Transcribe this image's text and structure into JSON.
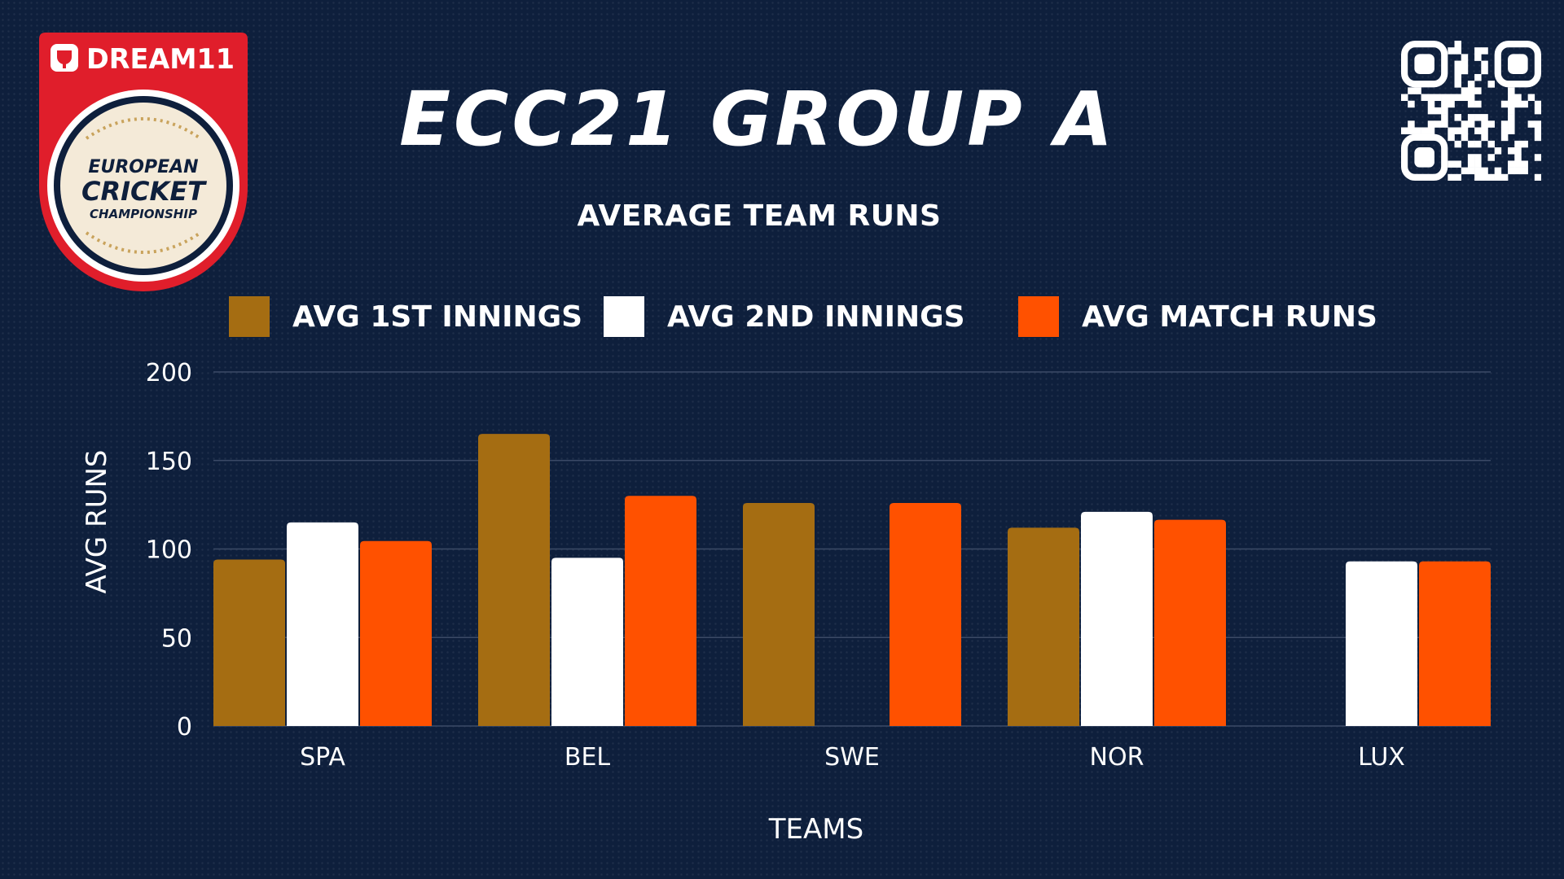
{
  "logo": {
    "brand": "DREAM11",
    "line1": "EUROPEAN",
    "line2": "CRICKET",
    "line3": "CHAMPIONSHIP"
  },
  "qr_icon": "qr-code-icon",
  "colors": {
    "background": "#0e1f3c",
    "first_innings": "#a56d12",
    "second_innings": "#ffffff",
    "match_runs": "#ff5100",
    "logo_red": "#e01e2b",
    "gridline": "#3b4a66"
  },
  "chart_data": {
    "type": "bar",
    "title": "ECC21 GROUP A",
    "subtitle": "AVERAGE TEAM RUNS",
    "xlabel": "TEAMS",
    "ylabel": "AVG RUNS",
    "ylim": [
      0,
      200
    ],
    "yticks": [
      0,
      50,
      100,
      150,
      200
    ],
    "grid": true,
    "legend_position": "top",
    "categories": [
      "SPA",
      "BEL",
      "SWE",
      "NOR",
      "LUX"
    ],
    "series": [
      {
        "name": "AVG 1ST INNINGS",
        "color": "#a56d12",
        "values": [
          94,
          165,
          126,
          112,
          null
        ]
      },
      {
        "name": "AVG 2ND INNINGS",
        "color": "#ffffff",
        "values": [
          115,
          95,
          null,
          121,
          93
        ]
      },
      {
        "name": "AVG MATCH RUNS",
        "color": "#ff5100",
        "values": [
          104.5,
          130,
          126,
          116.5,
          93
        ]
      }
    ]
  }
}
